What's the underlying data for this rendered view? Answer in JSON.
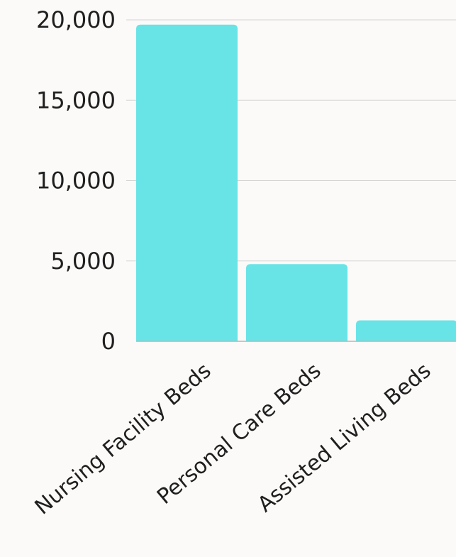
{
  "chart_data": {
    "type": "bar",
    "title": "",
    "xlabel": "",
    "ylabel": "",
    "categories": [
      "Nursing Facility Beds",
      "Personal Care Beds",
      "Assisted Living Beds"
    ],
    "values": [
      19700,
      4800,
      1300
    ],
    "ylim": [
      0,
      20000
    ],
    "yticks": [
      0,
      5000,
      10000,
      15000,
      20000
    ],
    "ytick_labels": [
      "0",
      "5,000",
      "10,000",
      "15,000",
      "20,000"
    ],
    "grid": true,
    "bar_color": "#68e4e7",
    "background_color": "#fbfaf8"
  }
}
